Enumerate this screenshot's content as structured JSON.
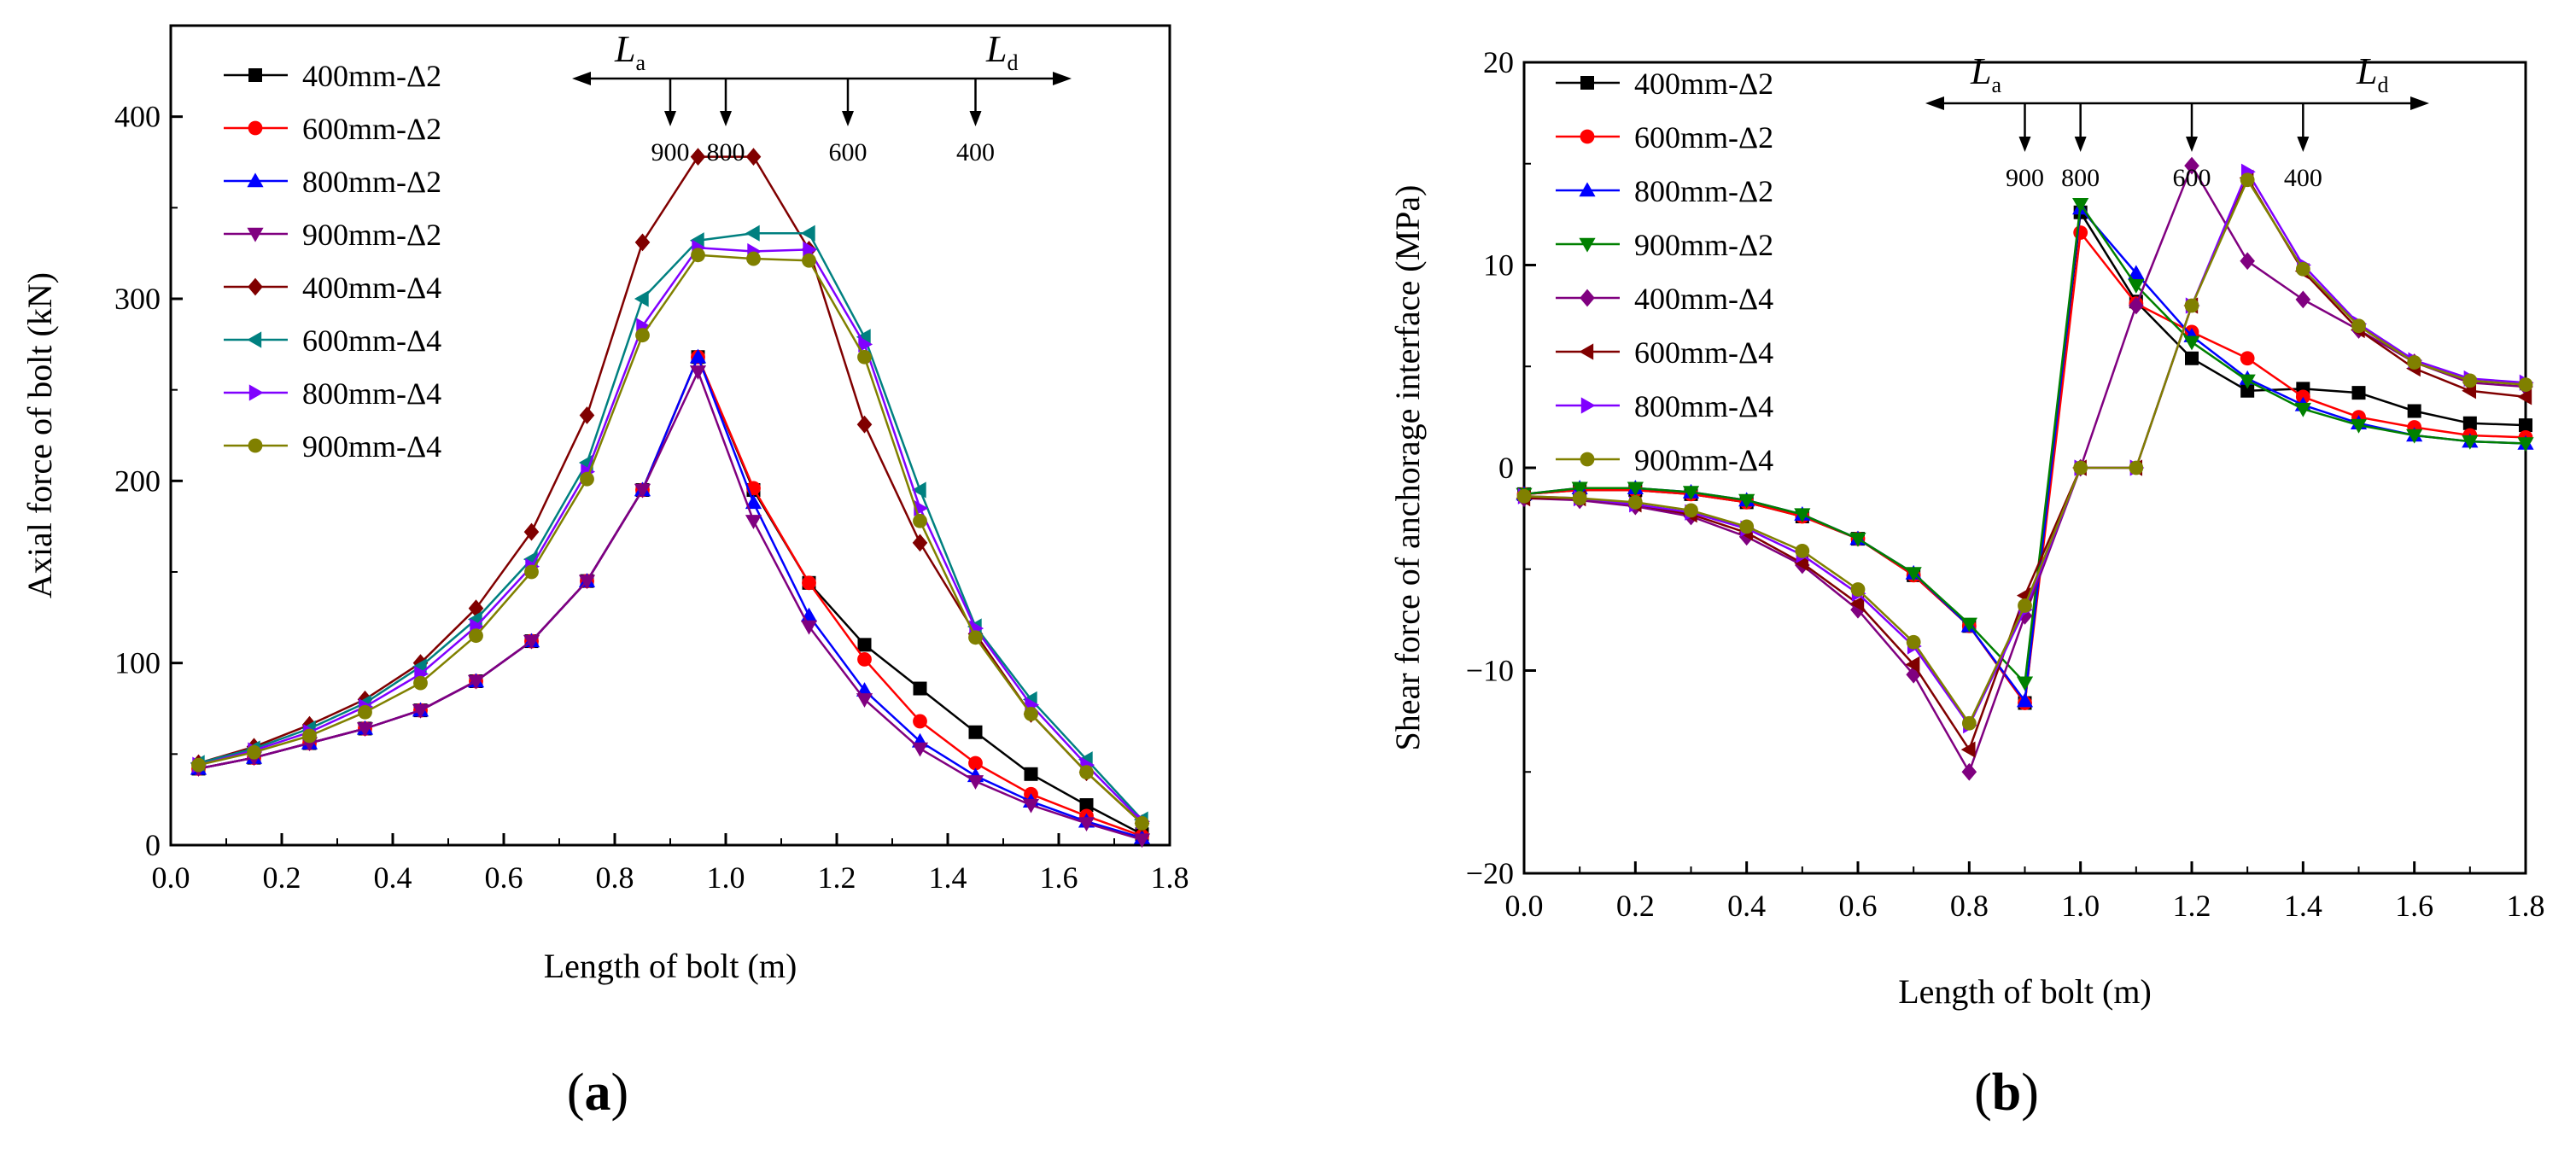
{
  "chart_data": [
    {
      "type": "line",
      "panel_label": "(a)",
      "panel_paren_open": "(",
      "panel_letter": "a",
      "panel_paren_close": ")",
      "xlabel": "Length of bolt (m)",
      "ylabel": "Axial force of bolt (kN)",
      "xlim": [
        0.0,
        1.8
      ],
      "ylim": [
        0,
        450
      ],
      "xticks": [
        0.0,
        0.2,
        0.4,
        0.6,
        0.8,
        1.0,
        1.2,
        1.4,
        1.6,
        1.8
      ],
      "yticks": [
        0,
        100,
        200,
        300,
        400
      ],
      "xtick_labels": [
        "0.0",
        "0.2",
        "0.4",
        "0.6",
        "0.8",
        "1.0",
        "1.2",
        "1.4",
        "1.6",
        "1.8"
      ],
      "ytick_labels": [
        "0",
        "100",
        "200",
        "300",
        "400"
      ],
      "legend_position": "top-left",
      "x": [
        0.05,
        0.15,
        0.25,
        0.35,
        0.45,
        0.55,
        0.65,
        0.75,
        0.85,
        0.95,
        1.05,
        1.15,
        1.25,
        1.35,
        1.45,
        1.55,
        1.65,
        1.75
      ],
      "series": [
        {
          "name": "400mm-Δ2",
          "color": "#000000",
          "marker": "square",
          "values": [
            42,
            48,
            56,
            64,
            74,
            90,
            112,
            145,
            195,
            268,
            195,
            144,
            110,
            86,
            62,
            39,
            22,
            6
          ]
        },
        {
          "name": "600mm-Δ2",
          "color": "#ff0000",
          "marker": "circle",
          "values": [
            42,
            48,
            56,
            64,
            74,
            90,
            112,
            145,
            195,
            268,
            196,
            144,
            102,
            68,
            45,
            28,
            16,
            5
          ]
        },
        {
          "name": "800mm-Δ2",
          "color": "#0000ff",
          "marker": "triangle-up",
          "values": [
            42,
            48,
            56,
            64,
            74,
            90,
            112,
            145,
            195,
            268,
            188,
            126,
            85,
            57,
            38,
            24,
            13,
            4
          ]
        },
        {
          "name": "900mm-Δ2",
          "color": "#800080",
          "marker": "triangle-down",
          "values": [
            42,
            48,
            56,
            64,
            74,
            90,
            112,
            145,
            195,
            260,
            178,
            120,
            80,
            53,
            35,
            22,
            12,
            3
          ]
        },
        {
          "name": "400mm-Δ4",
          "color": "#800000",
          "marker": "diamond",
          "values": [
            45,
            54,
            66,
            80,
            100,
            130,
            172,
            236,
            331,
            378,
            378,
            327,
            231,
            166,
            116,
            72,
            40,
            12
          ]
        },
        {
          "name": "600mm-Δ4",
          "color": "#008080",
          "marker": "triangle-left",
          "values": [
            45,
            53,
            64,
            78,
            98,
            124,
            157,
            210,
            300,
            332,
            336,
            336,
            279,
            195,
            120,
            80,
            47,
            14
          ]
        },
        {
          "name": "800mm-Δ4",
          "color": "#8000ff",
          "marker": "triangle-right",
          "values": [
            44,
            52,
            62,
            76,
            94,
            120,
            153,
            205,
            285,
            328,
            326,
            327,
            275,
            185,
            119,
            77,
            44,
            13
          ]
        },
        {
          "name": "900mm-Δ4",
          "color": "#808000",
          "marker": "circle",
          "values": [
            44,
            51,
            60,
            73,
            89,
            115,
            150,
            201,
            280,
            324,
            322,
            321,
            268,
            178,
            114,
            72,
            40,
            12
          ]
        }
      ],
      "annotation": {
        "left_label": "L",
        "left_sub": "a",
        "right_label": "L",
        "right_sub": "d",
        "markers": [
          {
            "label": "900",
            "x": 0.9
          },
          {
            "label": "800",
            "x": 1.0
          },
          {
            "label": "600",
            "x": 1.22
          },
          {
            "label": "400",
            "x": 1.45
          }
        ]
      }
    },
    {
      "type": "line",
      "panel_label": "(b)",
      "panel_paren_open": "(",
      "panel_letter": "b",
      "panel_paren_close": ")",
      "xlabel": "Length of bolt (m)",
      "ylabel": "Shear force of anchorage interface (MPa)",
      "xlim": [
        0.0,
        1.8
      ],
      "ylim": [
        -20,
        20
      ],
      "xticks": [
        0.0,
        0.2,
        0.4,
        0.6,
        0.8,
        1.0,
        1.2,
        1.4,
        1.6,
        1.8
      ],
      "yticks": [
        -20,
        -10,
        0,
        10,
        20
      ],
      "xtick_labels": [
        "0.0",
        "0.2",
        "0.4",
        "0.6",
        "0.8",
        "1.0",
        "1.2",
        "1.4",
        "1.6",
        "1.8"
      ],
      "ytick_labels": [
        "−20",
        "−10",
        "0",
        "10",
        "20"
      ],
      "legend_position": "top-left",
      "x": [
        0.0,
        0.1,
        0.2,
        0.3,
        0.4,
        0.5,
        0.6,
        0.7,
        0.8,
        0.9,
        1.0,
        1.1,
        1.2,
        1.3,
        1.4,
        1.5,
        1.6,
        1.7,
        1.8
      ],
      "series": [
        {
          "name": "400mm-Δ2",
          "color": "#000000",
          "marker": "square",
          "values": [
            -1.3,
            -1.1,
            -1.1,
            -1.3,
            -1.7,
            -2.4,
            -3.5,
            -5.3,
            -7.8,
            -11.6,
            12.6,
            8.2,
            5.4,
            3.8,
            3.9,
            3.7,
            2.8,
            2.2,
            2.1
          ]
        },
        {
          "name": "600mm-Δ2",
          "color": "#ff0000",
          "marker": "circle",
          "values": [
            -1.3,
            -1.1,
            -1.1,
            -1.3,
            -1.7,
            -2.4,
            -3.5,
            -5.3,
            -7.8,
            -11.6,
            11.6,
            8.1,
            6.7,
            5.4,
            3.5,
            2.5,
            2.0,
            1.6,
            1.5
          ]
        },
        {
          "name": "800mm-Δ2",
          "color": "#0000ff",
          "marker": "triangle-up",
          "values": [
            -1.3,
            -1.0,
            -1.0,
            -1.2,
            -1.6,
            -2.3,
            -3.5,
            -5.2,
            -7.8,
            -11.5,
            12.8,
            9.6,
            6.5,
            4.4,
            3.1,
            2.2,
            1.6,
            1.3,
            1.2
          ]
        },
        {
          "name": "900mm-Δ2",
          "color": "#008000",
          "marker": "triangle-down",
          "values": [
            -1.3,
            -1.0,
            -1.0,
            -1.2,
            -1.6,
            -2.3,
            -3.5,
            -5.2,
            -7.7,
            -10.6,
            13.0,
            9.0,
            6.2,
            4.3,
            2.9,
            2.1,
            1.6,
            1.3,
            1.2
          ]
        },
        {
          "name": "400mm-Δ4",
          "color": "#800080",
          "marker": "diamond",
          "values": [
            -1.5,
            -1.6,
            -1.9,
            -2.4,
            -3.4,
            -4.8,
            -7.0,
            -10.2,
            -15.0,
            -7.3,
            0.0,
            8.0,
            14.9,
            10.2,
            8.3,
            6.8,
            5.2,
            4.2,
            4.0
          ]
        },
        {
          "name": "600mm-Δ4",
          "color": "#800000",
          "marker": "triangle-left",
          "values": [
            -1.5,
            -1.5,
            -1.8,
            -2.3,
            -3.2,
            -4.7,
            -6.7,
            -9.7,
            -13.9,
            -6.3,
            0.0,
            0.0,
            8.0,
            14.3,
            9.7,
            6.8,
            4.9,
            3.8,
            3.5
          ]
        },
        {
          "name": "800mm-Δ4",
          "color": "#8000ff",
          "marker": "triangle-right",
          "values": [
            -1.4,
            -1.5,
            -1.8,
            -2.2,
            -3.0,
            -4.3,
            -6.2,
            -8.8,
            -12.7,
            -7.0,
            0.0,
            0.0,
            8.0,
            14.6,
            10.0,
            7.1,
            5.3,
            4.4,
            4.2
          ]
        },
        {
          "name": "900mm-Δ4",
          "color": "#808000",
          "marker": "circle",
          "values": [
            -1.4,
            -1.5,
            -1.7,
            -2.1,
            -2.9,
            -4.1,
            -6.0,
            -8.6,
            -12.6,
            -6.8,
            0.0,
            0.0,
            8.0,
            14.2,
            9.8,
            7.0,
            5.2,
            4.3,
            4.1
          ]
        }
      ],
      "annotation": {
        "left_label": "L",
        "left_sub": "a",
        "right_label": "L",
        "right_sub": "d",
        "markers": [
          {
            "label": "900",
            "x": 0.9
          },
          {
            "label": "800",
            "x": 1.0
          },
          {
            "label": "600",
            "x": 1.2
          },
          {
            "label": "400",
            "x": 1.4
          }
        ]
      }
    }
  ]
}
